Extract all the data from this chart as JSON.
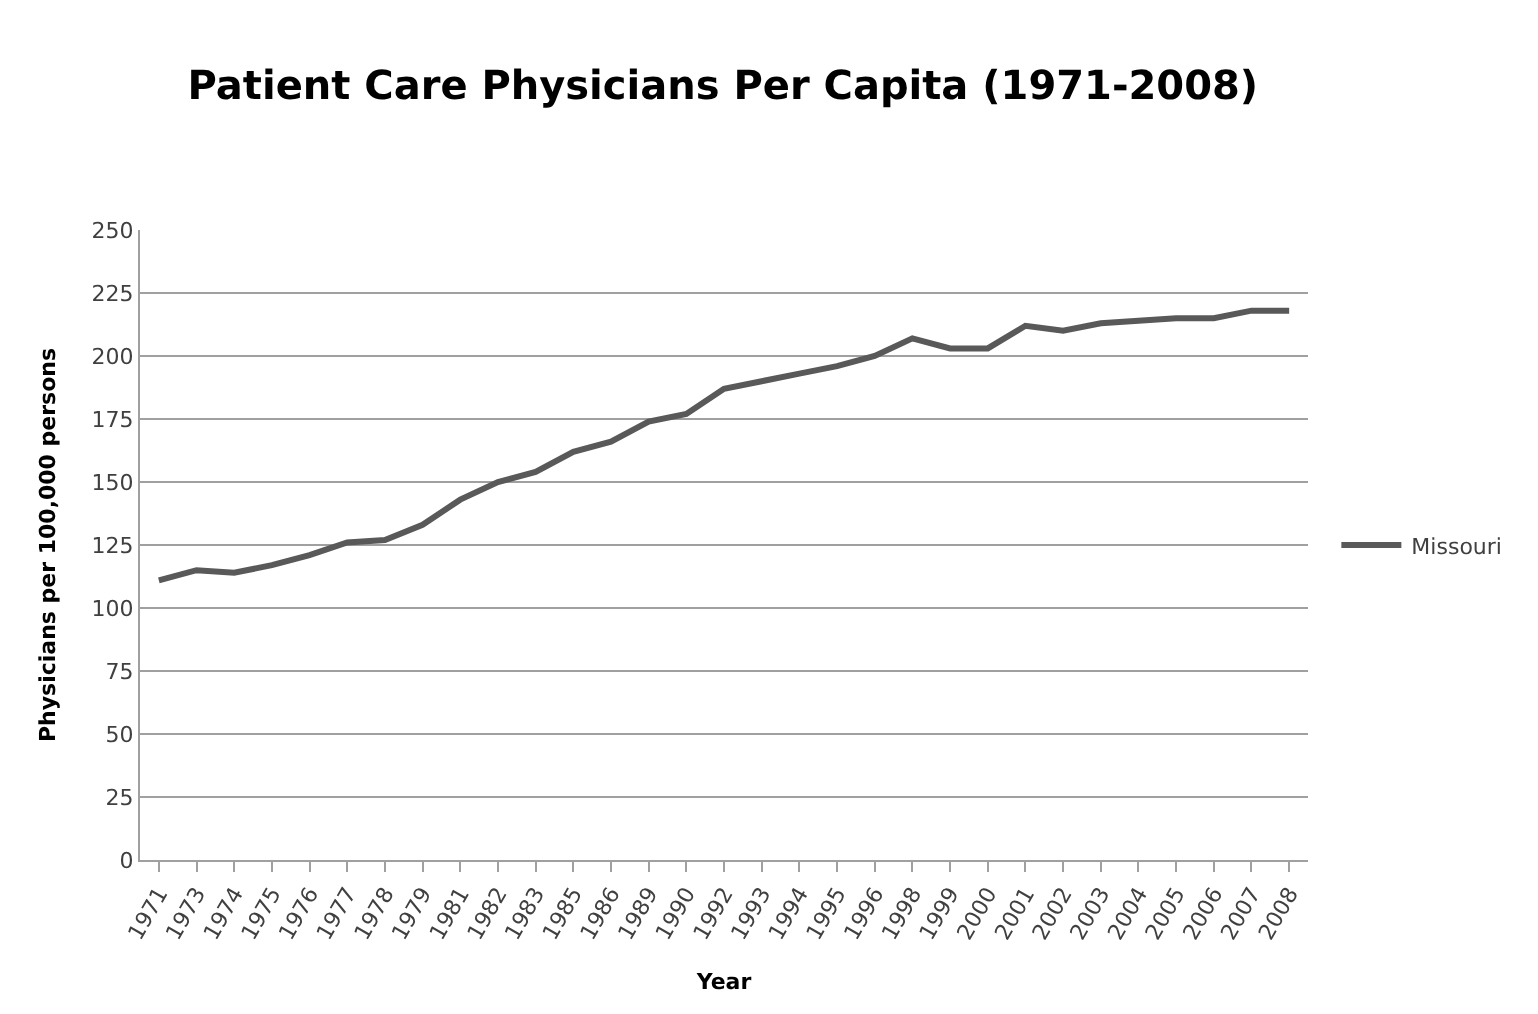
{
  "chart_data": {
    "type": "line",
    "title": "Patient Care Physicians Per Capita (1971-2008)",
    "xlabel": "Year",
    "ylabel": "Physicians per 100,000 persons",
    "categories": [
      "1971",
      "1973",
      "1974",
      "1975",
      "1976",
      "1977",
      "1978",
      "1979",
      "1981",
      "1982",
      "1983",
      "1985",
      "1986",
      "1989",
      "1990",
      "1992",
      "1993",
      "1994",
      "1995",
      "1996",
      "1998",
      "1999",
      "2000",
      "2001",
      "2002",
      "2003",
      "2004",
      "2005",
      "2006",
      "2007",
      "2008"
    ],
    "series": [
      {
        "name": "Missouri",
        "color": "#595959",
        "values": [
          111,
          115,
          114,
          117,
          121,
          126,
          127,
          133,
          143,
          150,
          154,
          162,
          166,
          174,
          177,
          187,
          190,
          193,
          196,
          200,
          207,
          203,
          203,
          212,
          210,
          213,
          214,
          215,
          215,
          218,
          218
        ]
      }
    ],
    "ylim": [
      0,
      250
    ],
    "yticks": [
      0,
      25,
      50,
      75,
      100,
      125,
      150,
      175,
      200,
      225,
      250
    ],
    "grid": "y",
    "legend": "right",
    "marker": "none",
    "line_style": "solid"
  }
}
